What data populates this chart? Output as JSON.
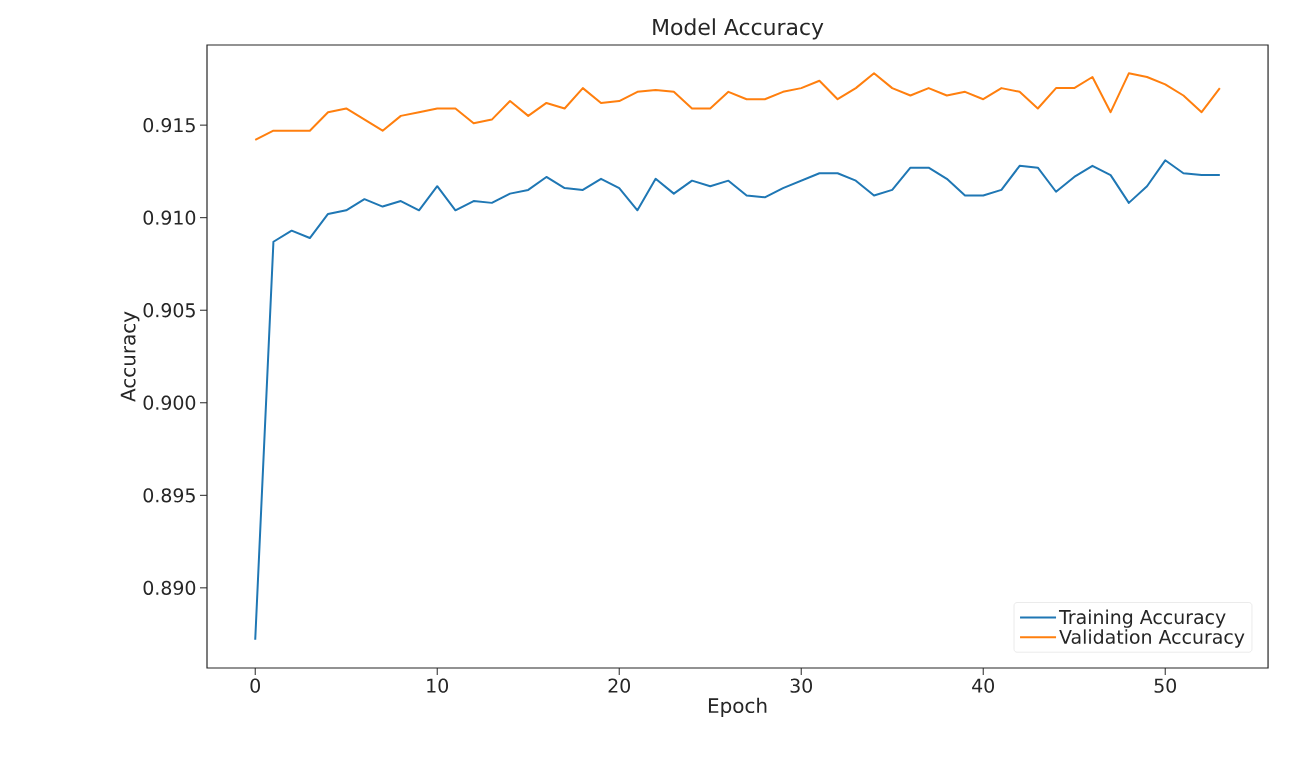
{
  "chart_data": {
    "type": "line",
    "title": "Model Accuracy",
    "xlabel": "Epoch",
    "ylabel": "Accuracy",
    "x": [
      0,
      1,
      2,
      3,
      4,
      5,
      6,
      7,
      8,
      9,
      10,
      11,
      12,
      13,
      14,
      15,
      16,
      17,
      18,
      19,
      20,
      21,
      22,
      23,
      24,
      25,
      26,
      27,
      28,
      29,
      30,
      31,
      32,
      33,
      34,
      35,
      36,
      37,
      38,
      39,
      40,
      41,
      42,
      43,
      44,
      45,
      46,
      47,
      48,
      49,
      50,
      51,
      52,
      53
    ],
    "series": [
      {
        "name": "Training Accuracy",
        "color": "#1f77b4",
        "values": [
          0.8872,
          0.9087,
          0.9093,
          0.9089,
          0.9102,
          0.9104,
          0.911,
          0.9106,
          0.9109,
          0.9104,
          0.9117,
          0.9104,
          0.9109,
          0.9108,
          0.9113,
          0.9115,
          0.9122,
          0.9116,
          0.9115,
          0.9121,
          0.9116,
          0.9104,
          0.9121,
          0.9113,
          0.912,
          0.9117,
          0.912,
          0.9112,
          0.9111,
          0.9116,
          0.912,
          0.9124,
          0.9124,
          0.912,
          0.9112,
          0.9115,
          0.9127,
          0.9127,
          0.9121,
          0.9112,
          0.9112,
          0.9115,
          0.9128,
          0.9127,
          0.9114,
          0.9122,
          0.9128,
          0.9123,
          0.9108,
          0.9117,
          0.9131,
          0.9124,
          0.9123,
          0.9123
        ]
      },
      {
        "name": "Validation Accuracy",
        "color": "#ff7f0e",
        "values": [
          0.9142,
          0.9147,
          0.9147,
          0.9147,
          0.9157,
          0.9159,
          0.9153,
          0.9147,
          0.9155,
          0.9157,
          0.9159,
          0.9159,
          0.9151,
          0.9153,
          0.9163,
          0.9155,
          0.9162,
          0.9159,
          0.917,
          0.9162,
          0.9163,
          0.9168,
          0.9169,
          0.9168,
          0.9159,
          0.9159,
          0.9168,
          0.9164,
          0.9164,
          0.9168,
          0.917,
          0.9174,
          0.9164,
          0.917,
          0.9178,
          0.917,
          0.9166,
          0.917,
          0.9166,
          0.9168,
          0.9164,
          0.917,
          0.9168,
          0.9159,
          0.917,
          0.917,
          0.9176,
          0.9157,
          0.9178,
          0.9176,
          0.9172,
          0.9166,
          0.9157,
          0.917
        ]
      }
    ],
    "xlim": [
      -2.65,
      55.65
    ],
    "ylim": [
      0.88567,
      0.91933
    ],
    "xticks": [
      0,
      10,
      20,
      30,
      40,
      50
    ],
    "yticks": [
      {
        "value": 0.89,
        "label": "0.890"
      },
      {
        "value": 0.895,
        "label": "0.895"
      },
      {
        "value": 0.9,
        "label": "0.900"
      },
      {
        "value": 0.905,
        "label": "0.905"
      },
      {
        "value": 0.91,
        "label": "0.910"
      },
      {
        "value": 0.915,
        "label": "0.915"
      }
    ],
    "legend": "bottom right",
    "marker": "none",
    "line_style": "solid"
  }
}
